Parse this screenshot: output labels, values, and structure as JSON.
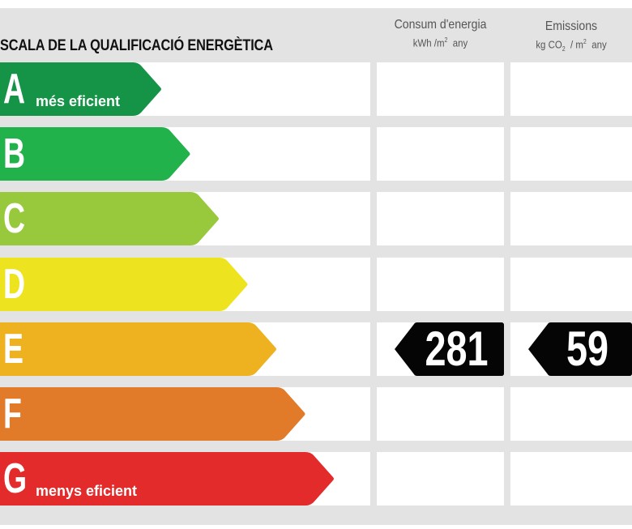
{
  "header": {
    "title": "SCALA DE LA QUALIFICACIÓ ENERGÈTICA",
    "consum": {
      "line1": "Consum d'energia",
      "unit_a": "kWh /m",
      "unit_sup": "2",
      "unit_b": "any"
    },
    "emissions": {
      "line1": "Emissions",
      "unit_a": "kg CO",
      "unit_sub": "2",
      "unit_mid": "/ m",
      "unit_sup": "2",
      "unit_b": "any"
    }
  },
  "chart_data": {
    "type": "table",
    "title": "SCALA DE LA QUALIFICACIÓ ENERGÈTICA",
    "columns": [
      "Consum d'energia kWh /m2 any",
      "Emissions kg CO2 / m2 any"
    ],
    "bands": [
      {
        "letter": "A",
        "label": "més eficient",
        "color": "#159447"
      },
      {
        "letter": "B",
        "label": "",
        "color": "#21b24b"
      },
      {
        "letter": "C",
        "label": "",
        "color": "#98c93c"
      },
      {
        "letter": "D",
        "label": "",
        "color": "#ede41f"
      },
      {
        "letter": "E",
        "label": "",
        "color": "#eeb11f"
      },
      {
        "letter": "F",
        "label": "",
        "color": "#e17a29"
      },
      {
        "letter": "G",
        "label": "menys eficient",
        "color": "#e32b2b"
      }
    ],
    "rating": {
      "band": "E",
      "consum": "281",
      "emissions": "59"
    }
  }
}
